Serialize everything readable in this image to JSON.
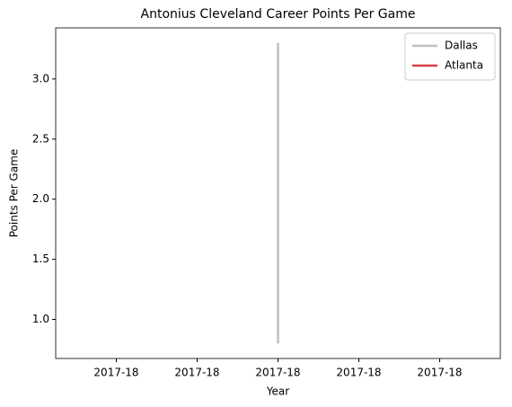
{
  "chart_data": {
    "type": "line",
    "title": "Antonius Cleveland Career Points Per Game",
    "xlabel": "Year",
    "ylabel": "Points Per Game",
    "xlim": [
      -0.055,
      0.055
    ],
    "xticks": [
      {
        "value": -0.04,
        "label": "2017-18"
      },
      {
        "value": -0.02,
        "label": "2017-18"
      },
      {
        "value": 0,
        "label": "2017-18"
      },
      {
        "value": 0.02,
        "label": "2017-18"
      },
      {
        "value": 0.04,
        "label": "2017-18"
      }
    ],
    "ylim": [
      0.675,
      3.425
    ],
    "yticks": [
      {
        "value": 1,
        "label": "1.0"
      },
      {
        "value": 1.5,
        "label": "1.5"
      },
      {
        "value": 2,
        "label": "2.0"
      },
      {
        "value": 2.5,
        "label": "2.5"
      },
      {
        "value": 3,
        "label": "3.0"
      }
    ],
    "legend": "upper right",
    "series": [
      {
        "name": "Dallas",
        "color": "#c0c0c0",
        "x": [
          0,
          0
        ],
        "values": [
          3.3,
          0.8
        ]
      },
      {
        "name": "Atlanta",
        "color": "#d9404a",
        "x": [],
        "values": []
      }
    ]
  }
}
